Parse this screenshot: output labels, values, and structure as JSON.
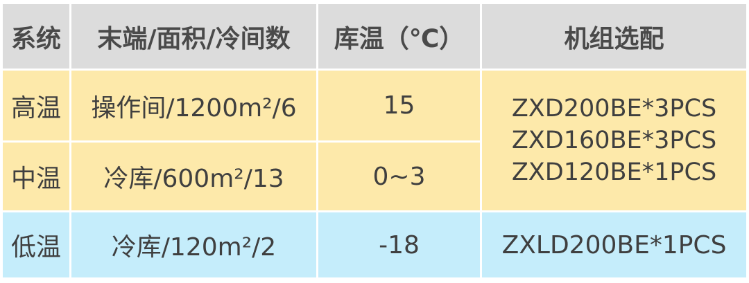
{
  "headers": [
    "系统",
    "末端/面积/冷间数",
    "库温（℃）",
    "机组选配"
  ],
  "rows": [
    {
      "system": "高温",
      "terminal": "操作间/1200m²/6",
      "temp": "15"
    },
    {
      "system": "中温",
      "terminal": "冷库/600m²/13",
      "temp": "0~3"
    },
    {
      "system": "低温",
      "terminal": "冷库/120m²/2",
      "temp": "-18",
      "units": "ZXLD200BE*1PCS"
    }
  ],
  "shared_units": [
    "ZXD200BE*3PCS",
    "ZXD160BE*3PCS",
    "ZXD120BE*1PCS"
  ],
  "colors": {
    "header": "#dcdcdc",
    "medium_high": "#fde9aa",
    "low": "#c5edfb"
  }
}
